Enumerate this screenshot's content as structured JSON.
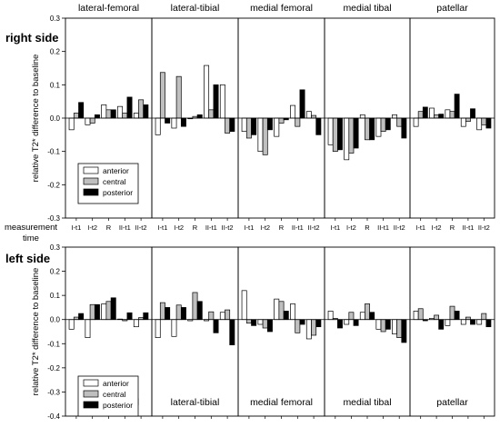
{
  "figure": {
    "ylabel": "relative T2* difference to baseline",
    "xaxis_caption_line1": "measurement",
    "xaxis_caption_line2": "time",
    "legend": [
      "anterior",
      "central",
      "posterior"
    ],
    "colors": {
      "anterior": "#ffffff",
      "central": "#bfbfbf",
      "posterior": "#000000"
    }
  },
  "chart_data": [
    {
      "type": "bar",
      "title": "right side",
      "ylabel": "relative T2* difference to baseline",
      "ylim": [
        -0.3,
        0.3
      ],
      "yticks": [
        -0.3,
        -0.2,
        -0.1,
        0.0,
        0.1,
        0.2,
        0.3
      ],
      "ytick_labels": [
        "-0.3",
        "-0.2",
        "-0.1",
        "0.0",
        "0.1",
        "0.2",
        "0.3"
      ],
      "legend_position": "bottom-left",
      "categories": [
        "I-t1",
        "I-t2",
        "R",
        "II-t1",
        "II-t2"
      ],
      "panels": [
        {
          "name": "lateral-femoral",
          "series": [
            {
              "name": "anterior",
              "values": [
                -0.035,
                -0.02,
                0.04,
                0.035,
                0.015
              ]
            },
            {
              "name": "central",
              "values": [
                0.015,
                -0.015,
                0.025,
                0.015,
                0.055
              ]
            },
            {
              "name": "posterior",
              "values": [
                0.047,
                0.01,
                0.025,
                0.063,
                0.04
              ]
            }
          ]
        },
        {
          "name": "lateral-tibial",
          "series": [
            {
              "name": "anterior",
              "values": [
                -0.05,
                -0.03,
                -0.002,
                0.158,
                0.1
              ]
            },
            {
              "name": "central",
              "values": [
                0.137,
                0.125,
                0.005,
                0.025,
                -0.045
              ]
            },
            {
              "name": "posterior",
              "values": [
                -0.015,
                -0.025,
                0.01,
                0.1,
                -0.04
              ]
            }
          ]
        },
        {
          "name": "medial femoral",
          "series": [
            {
              "name": "anterior",
              "values": [
                -0.04,
                -0.1,
                -0.055,
                0.038,
                0.02
              ]
            },
            {
              "name": "central",
              "values": [
                -0.06,
                -0.11,
                -0.015,
                -0.025,
                0.008
              ]
            },
            {
              "name": "posterior",
              "values": [
                -0.05,
                -0.035,
                -0.005,
                0.085,
                -0.05
              ]
            }
          ]
        },
        {
          "name": "medial tibal",
          "series": [
            {
              "name": "anterior",
              "values": [
                -0.08,
                -0.125,
                0.01,
                -0.055,
                0.01
              ]
            },
            {
              "name": "central",
              "values": [
                -0.1,
                -0.105,
                -0.065,
                -0.04,
                -0.025
              ]
            },
            {
              "name": "posterior",
              "values": [
                -0.095,
                -0.09,
                -0.065,
                -0.035,
                -0.06
              ]
            }
          ]
        },
        {
          "name": "patellar",
          "series": [
            {
              "name": "anterior",
              "values": [
                -0.025,
                0.03,
                0.025,
                -0.025,
                -0.035
              ]
            },
            {
              "name": "central",
              "values": [
                0.02,
                0.01,
                0.02,
                -0.01,
                -0.02
              ]
            },
            {
              "name": "posterior",
              "values": [
                0.033,
                0.012,
                0.072,
                0.028,
                -0.03
              ]
            }
          ]
        }
      ]
    },
    {
      "type": "bar",
      "title": "left side",
      "ylabel": "relative T2* difference to baseline",
      "ylim": [
        -0.4,
        0.3
      ],
      "yticks": [
        -0.4,
        -0.3,
        -0.2,
        -0.1,
        0.0,
        0.1,
        0.2,
        0.3
      ],
      "ytick_labels": [
        "-0.4",
        "-0.3",
        "-0.2",
        "-0.1",
        "0.0",
        "0.1",
        "0.2",
        "0.3"
      ],
      "legend_position": "bottom-left",
      "categories": [
        "I-t1",
        "I-t2",
        "R",
        "II-t1",
        "II-t2"
      ],
      "panels": [
        {
          "name": "lateral-femoral",
          "series": [
            {
              "name": "anterior",
              "values": [
                -0.04,
                -0.075,
                0.065,
                0.002,
                -0.03
              ]
            },
            {
              "name": "central",
              "values": [
                0.01,
                0.062,
                0.075,
                -0.005,
                0.008
              ]
            },
            {
              "name": "posterior",
              "values": [
                0.025,
                0.062,
                0.09,
                0.028,
                0.028
              ]
            }
          ]
        },
        {
          "name": "lateral-tibial",
          "series": [
            {
              "name": "anterior",
              "values": [
                -0.075,
                -0.07,
                -0.005,
                -0.005,
                0.03
              ]
            },
            {
              "name": "central",
              "values": [
                0.07,
                0.06,
                0.112,
                0.032,
                0.04
              ]
            },
            {
              "name": "posterior",
              "values": [
                0.05,
                0.05,
                0.075,
                -0.055,
                -0.105
              ]
            }
          ]
        },
        {
          "name": "medial femoral",
          "series": [
            {
              "name": "anterior",
              "values": [
                0.12,
                -0.02,
                0.085,
                0.065,
                -0.08
              ]
            },
            {
              "name": "central",
              "values": [
                -0.015,
                -0.035,
                0.075,
                -0.055,
                -0.065
              ]
            },
            {
              "name": "posterior",
              "values": [
                -0.025,
                -0.05,
                0.035,
                -0.02,
                -0.03
              ]
            }
          ]
        },
        {
          "name": "medial tibal",
          "series": [
            {
              "name": "anterior",
              "values": [
                0.035,
                -0.02,
                0.03,
                -0.04,
                -0.06
              ]
            },
            {
              "name": "central",
              "values": [
                0.005,
                0.03,
                0.065,
                -0.05,
                -0.075
              ]
            },
            {
              "name": "posterior",
              "values": [
                -0.035,
                -0.025,
                0.03,
                -0.04,
                -0.095
              ]
            }
          ]
        },
        {
          "name": "patellar",
          "series": [
            {
              "name": "anterior",
              "values": [
                0.035,
                0.005,
                -0.025,
                -0.02,
                -0.02
              ]
            },
            {
              "name": "central",
              "values": [
                0.045,
                0.018,
                0.055,
                0.01,
                0.025
              ]
            },
            {
              "name": "posterior",
              "values": [
                -0.005,
                -0.04,
                0.035,
                -0.02,
                -0.03
              ]
            }
          ]
        }
      ]
    }
  ]
}
